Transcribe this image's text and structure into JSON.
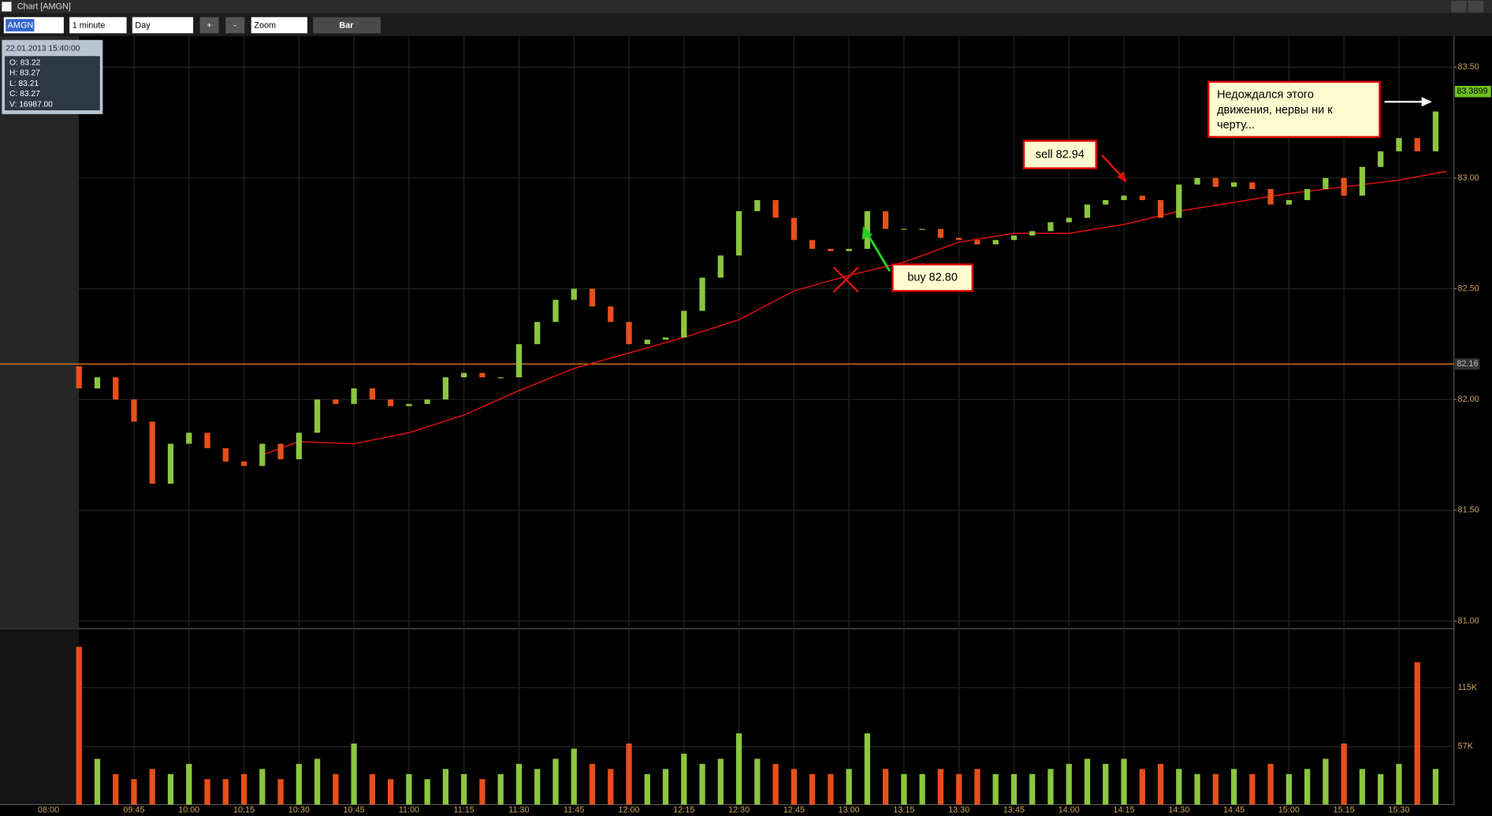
{
  "window": {
    "title": "Chart [AMGN]",
    "symbol": "AMGN",
    "interval": "1 minute",
    "period": "Day",
    "plus": "+",
    "minus": "-",
    "zoom": "Zoom",
    "style": "Bar"
  },
  "info": {
    "datetime": "22.01.2013 15:40:00",
    "lines": [
      "O: 83.22",
      "H: 83.27",
      "L: 83.21",
      "C: 83.27",
      "V: 16987.00"
    ]
  },
  "chart_data": {
    "type": "candlestick",
    "x": [
      570,
      575,
      580,
      585,
      590,
      595,
      600,
      605,
      610,
      615,
      620,
      625,
      630,
      635,
      640,
      645,
      650,
      655,
      660,
      665,
      670,
      675,
      680,
      685,
      690,
      695,
      700,
      705,
      710,
      715,
      720,
      725,
      730,
      735,
      740,
      745,
      750,
      755,
      760,
      765,
      770,
      775,
      780,
      785,
      790,
      795,
      800,
      805,
      810,
      815,
      820,
      825,
      830,
      835,
      840,
      845,
      850,
      855,
      860,
      865,
      870,
      875,
      880,
      885,
      890,
      895,
      900,
      905,
      910,
      915,
      920,
      925,
      930,
      935,
      940
    ],
    "open": [
      82.15,
      82.05,
      82.1,
      82.0,
      81.9,
      81.62,
      81.8,
      81.85,
      81.78,
      81.72,
      81.7,
      81.8,
      81.73,
      81.85,
      82.0,
      81.98,
      82.05,
      82.0,
      81.97,
      81.98,
      82.0,
      82.1,
      82.12,
      82.1,
      82.1,
      82.25,
      82.35,
      82.45,
      82.5,
      82.42,
      82.35,
      82.25,
      82.27,
      82.28,
      82.4,
      82.55,
      82.65,
      82.85,
      82.9,
      82.82,
      82.72,
      82.68,
      82.67,
      82.68,
      82.85,
      82.77,
      82.77,
      82.77,
      82.73,
      82.72,
      82.7,
      82.72,
      82.74,
      82.76,
      82.8,
      82.82,
      82.88,
      82.9,
      82.92,
      82.9,
      82.82,
      82.97,
      83.0,
      82.96,
      82.98,
      82.95,
      82.88,
      82.9,
      82.95,
      83.0,
      82.92,
      83.05,
      83.12,
      83.18,
      83.12
    ],
    "close": [
      82.05,
      82.1,
      82.0,
      81.9,
      81.62,
      81.8,
      81.85,
      81.78,
      81.72,
      81.7,
      81.8,
      81.73,
      81.85,
      82.0,
      81.98,
      82.05,
      82.0,
      81.97,
      81.98,
      82.0,
      82.1,
      82.12,
      82.1,
      82.1,
      82.25,
      82.35,
      82.45,
      82.5,
      82.42,
      82.35,
      82.25,
      82.27,
      82.28,
      82.4,
      82.55,
      82.65,
      82.85,
      82.9,
      82.82,
      82.72,
      82.68,
      82.67,
      82.68,
      82.85,
      82.77,
      82.77,
      82.77,
      82.73,
      82.72,
      82.7,
      82.72,
      82.74,
      82.76,
      82.8,
      82.82,
      82.88,
      82.9,
      82.92,
      82.9,
      82.82,
      82.97,
      83.0,
      82.96,
      82.98,
      82.95,
      82.88,
      82.9,
      82.95,
      83.0,
      82.92,
      83.05,
      83.12,
      83.18,
      83.12,
      83.3
    ],
    "up_color": "#8cc63f",
    "down_color": "#e8501a",
    "xlim": [
      570,
      945
    ],
    "xticks": [
      {
        "value": 585,
        "label": "09:45"
      },
      {
        "value": 600,
        "label": "10:00"
      },
      {
        "value": 615,
        "label": "10:15"
      },
      {
        "value": 630,
        "label": "10:30"
      },
      {
        "value": 645,
        "label": "10:45"
      },
      {
        "value": 660,
        "label": "11:00"
      },
      {
        "value": 675,
        "label": "11:15"
      },
      {
        "value": 690,
        "label": "11:30"
      },
      {
        "value": 705,
        "label": "11:45"
      },
      {
        "value": 720,
        "label": "12:00"
      },
      {
        "value": 735,
        "label": "12:15"
      },
      {
        "value": 750,
        "label": "12:30"
      },
      {
        "value": 765,
        "label": "12:45"
      },
      {
        "value": 780,
        "label": "13:00"
      },
      {
        "value": 795,
        "label": "13:15"
      },
      {
        "value": 810,
        "label": "13:30"
      },
      {
        "value": 825,
        "label": "13:45"
      },
      {
        "value": 840,
        "label": "14:00"
      },
      {
        "value": 855,
        "label": "14:15"
      },
      {
        "value": 870,
        "label": "14:30"
      },
      {
        "value": 885,
        "label": "14:45"
      },
      {
        "value": 900,
        "label": "15:00"
      },
      {
        "value": 915,
        "label": "15:15"
      },
      {
        "value": 930,
        "label": "15:30"
      }
    ],
    "premarket_label": "08:00",
    "ylim": [
      80.97,
      83.61
    ],
    "yticks": [
      {
        "value": 81,
        "label": "81.00"
      },
      {
        "value": 81.5,
        "label": "81.50"
      },
      {
        "value": 82,
        "label": "82.00"
      },
      {
        "value": 82.5,
        "label": "82.50"
      },
      {
        "value": 83,
        "label": "83.00"
      },
      {
        "value": 83.5,
        "label": "83.50"
      }
    ],
    "grid": true,
    "ma": {
      "color": "#e01010",
      "x": [
        620,
        630,
        645,
        660,
        675,
        690,
        705,
        720,
        735,
        750,
        765,
        780,
        795,
        810,
        825,
        840,
        855,
        870,
        885,
        900,
        915,
        930,
        943
      ],
      "values": [
        81.75,
        81.81,
        81.8,
        81.85,
        81.93,
        82.04,
        82.14,
        82.21,
        82.28,
        82.36,
        82.49,
        82.56,
        82.62,
        82.71,
        82.75,
        82.75,
        82.79,
        82.85,
        82.89,
        82.93,
        82.96,
        82.99,
        83.03
      ]
    },
    "hline": 82.16,
    "hline_color": "#e07a20",
    "last_price": 83.3899,
    "annotations": {
      "sell": "sell 82.94",
      "buy": "buy 82.80",
      "comment": [
        "Недождался этого",
        "движения, нервы ни к",
        "черту..."
      ]
    },
    "volume": {
      "values": [
        155000,
        45000,
        30000,
        25000,
        35000,
        30000,
        40000,
        25000,
        25000,
        30000,
        35000,
        25000,
        40000,
        45000,
        30000,
        60000,
        30000,
        25000,
        30000,
        25000,
        35000,
        30000,
        25000,
        30000,
        40000,
        35000,
        45000,
        55000,
        40000,
        35000,
        60000,
        30000,
        35000,
        50000,
        40000,
        45000,
        70000,
        45000,
        40000,
        35000,
        30000,
        30000,
        35000,
        70000,
        35000,
        30000,
        30000,
        35000,
        30000,
        35000,
        30000,
        30000,
        30000,
        35000,
        40000,
        45000,
        40000,
        45000,
        35000,
        40000,
        35000,
        30000,
        30000,
        35000,
        30000,
        40000,
        30000,
        35000,
        45000,
        60000,
        35000,
        30000,
        40000,
        140000,
        35000
      ],
      "ylim": [
        0,
        172000
      ],
      "yticks": [
        {
          "value": 57000,
          "label": "57K"
        },
        {
          "value": 115000,
          "label": "115K"
        }
      ]
    }
  }
}
